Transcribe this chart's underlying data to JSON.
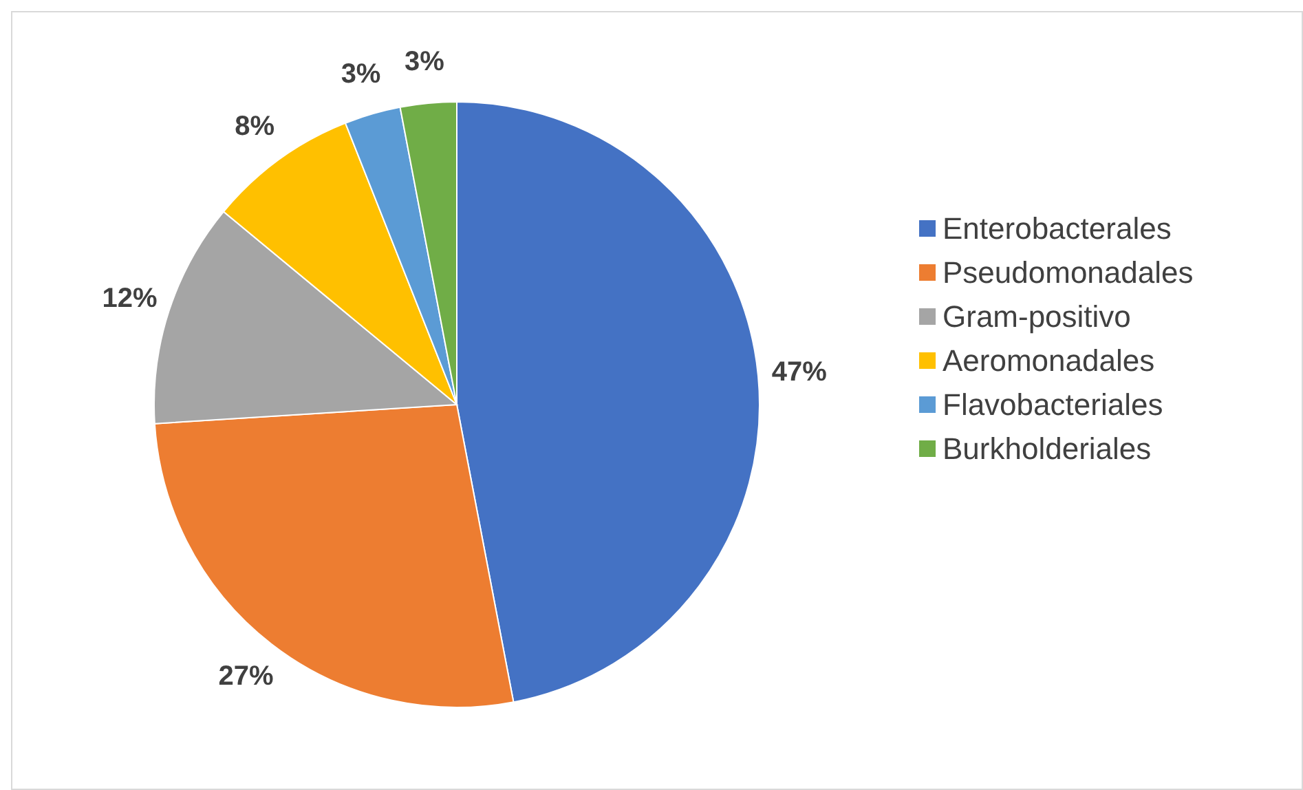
{
  "chart_data": {
    "type": "pie",
    "categories": [
      "Enterobacterales",
      "Pseudomonadales",
      "Gram-positivo",
      "Aeromonadales",
      "Flavobacteriales",
      "Burkholderiales"
    ],
    "values": [
      47,
      27,
      12,
      8,
      3,
      3
    ],
    "colors": [
      "#4472c4",
      "#ed7d31",
      "#a5a5a5",
      "#ffc000",
      "#5b9bd5",
      "#70ad47"
    ],
    "value_labels": [
      "47%",
      "27%",
      "12%",
      "8%",
      "3%",
      "3%"
    ],
    "legend": "right"
  }
}
